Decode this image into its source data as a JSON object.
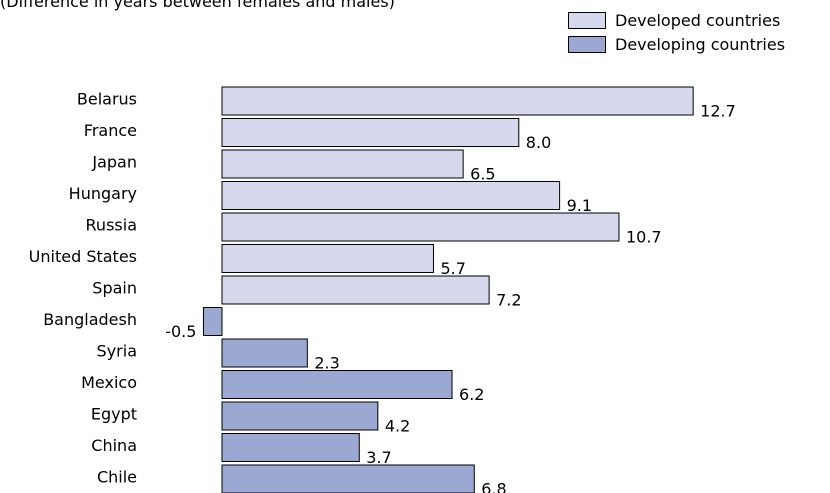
{
  "subtitle": "(Difference in years between females and males)",
  "colors": {
    "developed": "#d6d9ee",
    "developing": "#9ba9d2"
  },
  "legend": {
    "developed_label": "Developed countries",
    "developing_label": "Developing countries"
  },
  "chart_data": {
    "type": "bar",
    "orientation": "horizontal",
    "categories": [
      "Belarus",
      "France",
      "Japan",
      "Hungary",
      "Russia",
      "United States",
      "Spain",
      "Bangladesh",
      "Syria",
      "Mexico",
      "Egypt",
      "China",
      "Chile"
    ],
    "values": [
      12.7,
      8.0,
      6.5,
      9.1,
      10.7,
      5.7,
      7.2,
      -0.5,
      2.3,
      6.2,
      4.2,
      3.7,
      6.8
    ],
    "value_labels": [
      "12.7",
      "8.0",
      "6.5",
      "9.1",
      "10.7",
      "5.7",
      "7.2",
      "-0.5",
      "2.3",
      "6.2",
      "4.2",
      "3.7",
      "6.8"
    ],
    "groups": [
      "developed",
      "developed",
      "developed",
      "developed",
      "developed",
      "developed",
      "developed",
      "developing",
      "developing",
      "developing",
      "developing",
      "developing",
      "developing"
    ],
    "series": [
      {
        "name": "Developed countries",
        "categories": [
          "Belarus",
          "France",
          "Japan",
          "Hungary",
          "Russia",
          "United States",
          "Spain"
        ]
      },
      {
        "name": "Developing countries",
        "categories": [
          "Bangladesh",
          "Syria",
          "Mexico",
          "Egypt",
          "China",
          "Chile"
        ]
      }
    ],
    "subtitle": "(Difference in years between females and males)",
    "xlim": [
      -0.5,
      12.7
    ],
    "grid": false,
    "legend_position": "top-right"
  }
}
